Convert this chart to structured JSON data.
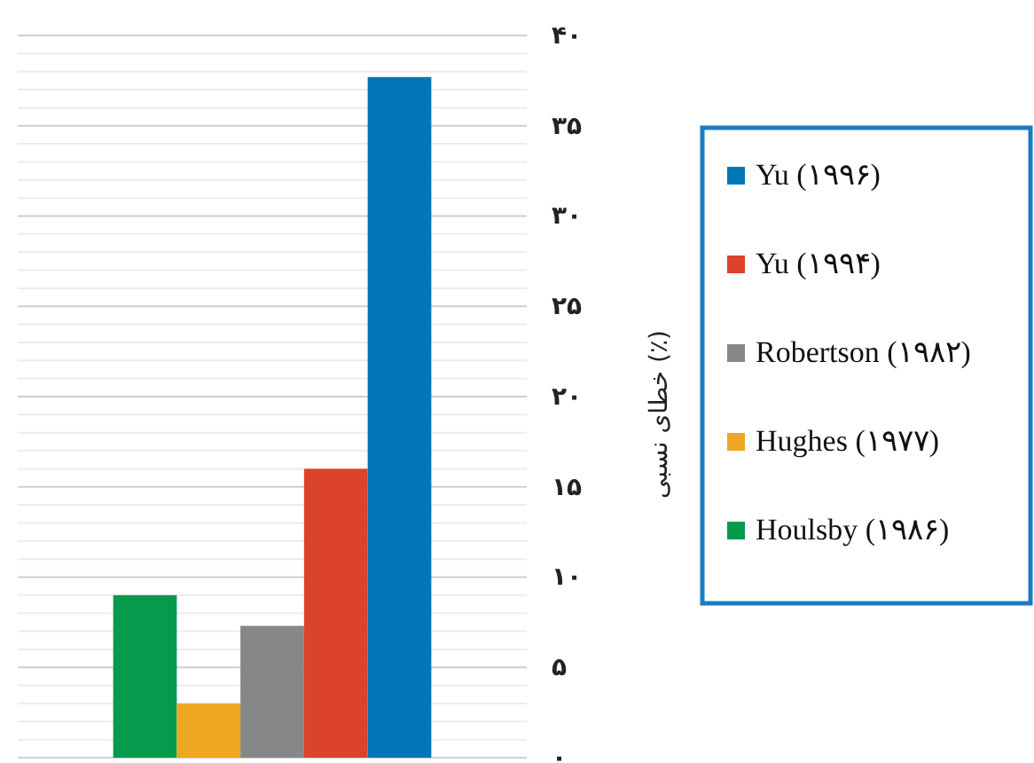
{
  "chart_data": {
    "type": "bar",
    "ylabel": "خطای نسبی (٪)",
    "categories": [
      null,
      null,
      null,
      null,
      null
    ],
    "series": [
      {
        "name": "Houlsby (۱۹۸۶)",
        "color": "#069a4c",
        "values": [
          9,
          null,
          null,
          null,
          null
        ]
      },
      {
        "name": "Hughes (۱۹۷۷)",
        "color": "#eda722",
        "values": [
          null,
          3,
          null,
          null,
          null
        ]
      },
      {
        "name": "Robertson (۱۹۸۲)",
        "color": "#858789",
        "values": [
          null,
          null,
          7.3,
          null,
          null
        ]
      },
      {
        "name": "Yu (۱۹۹۴)",
        "color": "#db432a",
        "values": [
          null,
          null,
          null,
          16,
          null
        ]
      },
      {
        "name": "Yu (۱۹۹۶)",
        "color": "#0177ba",
        "values": [
          null,
          null,
          null,
          null,
          37.7
        ]
      }
    ],
    "ylim": [
      0,
      40
    ],
    "yticks": [
      {
        "value": 0,
        "label": "۰"
      },
      {
        "value": 1,
        "label": null
      },
      {
        "value": 2,
        "label": null
      },
      {
        "value": 3,
        "label": null
      },
      {
        "value": 4,
        "label": null
      },
      {
        "value": 5,
        "label": "۵"
      },
      {
        "value": 6,
        "label": null
      },
      {
        "value": 7,
        "label": null
      },
      {
        "value": 8,
        "label": null
      },
      {
        "value": 9,
        "label": null
      },
      {
        "value": 10,
        "label": "۱۰"
      },
      {
        "value": 11,
        "label": null
      },
      {
        "value": 12,
        "label": null
      },
      {
        "value": 13,
        "label": null
      },
      {
        "value": 14,
        "label": null
      },
      {
        "value": 15,
        "label": "۱۵"
      },
      {
        "value": 16,
        "label": null
      },
      {
        "value": 17,
        "label": null
      },
      {
        "value": 18,
        "label": null
      },
      {
        "value": 19,
        "label": null
      },
      {
        "value": 20,
        "label": "۲۰"
      },
      {
        "value": 21,
        "label": null
      },
      {
        "value": 22,
        "label": null
      },
      {
        "value": 23,
        "label": null
      },
      {
        "value": 24,
        "label": null
      },
      {
        "value": 25,
        "label": "۲۵"
      },
      {
        "value": 26,
        "label": null
      },
      {
        "value": 27,
        "label": null
      },
      {
        "value": 28,
        "label": null
      },
      {
        "value": 29,
        "label": null
      },
      {
        "value": 30,
        "label": "۳۰"
      },
      {
        "value": 31,
        "label": null
      },
      {
        "value": 32,
        "label": null
      },
      {
        "value": 33,
        "label": null
      },
      {
        "value": 34,
        "label": null
      },
      {
        "value": 35,
        "label": "۳۵"
      },
      {
        "value": 36,
        "label": null
      },
      {
        "value": 37,
        "label": null
      },
      {
        "value": 38,
        "label": null
      },
      {
        "value": 39,
        "label": null
      },
      {
        "value": 40,
        "label": "۴۰"
      }
    ],
    "grid": "y",
    "legend": "right",
    "stacked": true
  }
}
